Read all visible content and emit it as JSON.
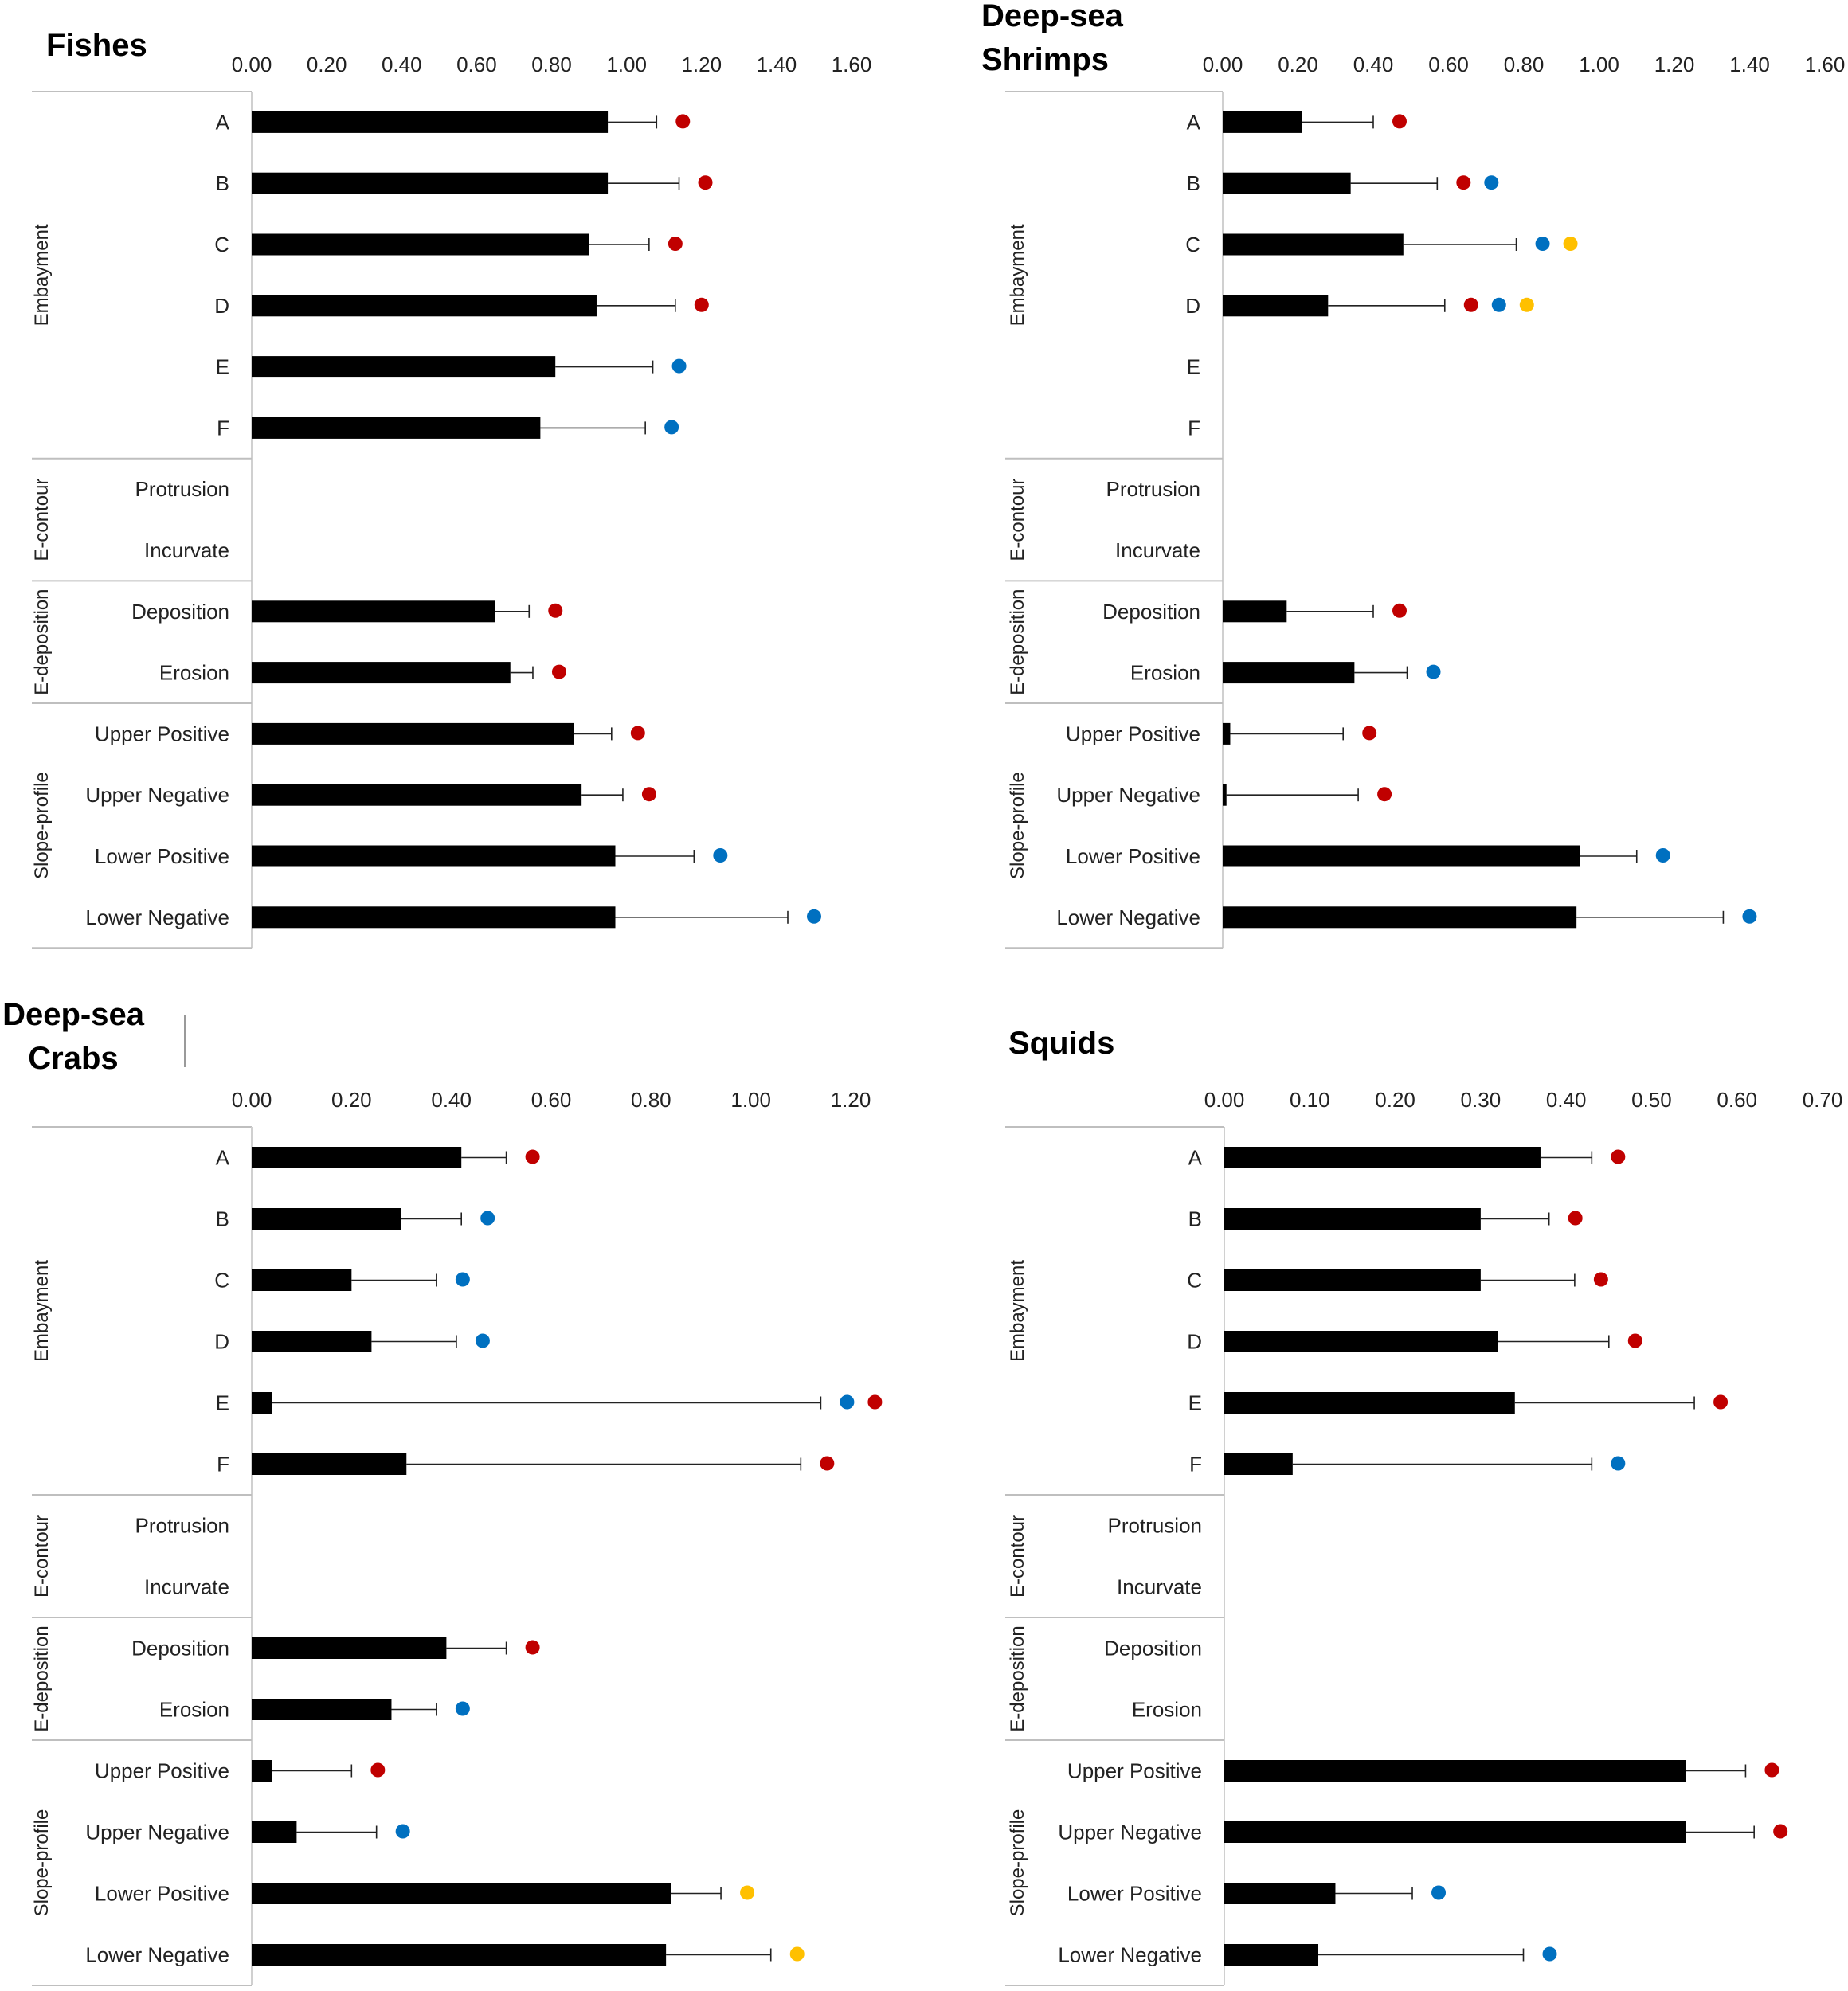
{
  "colors": {
    "red": "#C00000",
    "blue": "#0070C0",
    "yellow": "#FFC000",
    "bar": "#000000"
  },
  "groups": [
    {
      "label": "Embayment",
      "categories": [
        "A",
        "B",
        "C",
        "D",
        "E",
        "F"
      ]
    },
    {
      "label": "E-contour",
      "categories": [
        "Protrusion",
        "Incurvate"
      ]
    },
    {
      "label": "E-deposition",
      "categories": [
        "Deposition",
        "Erosion"
      ]
    },
    {
      "label": "Slope-profile",
      "categories": [
        "Upper Positive",
        "Upper Negative",
        "Lower Positive",
        "Lower Negative"
      ]
    }
  ],
  "chart_data": [
    {
      "type": "bar",
      "orientation": "horizontal",
      "title": [
        "Fishes"
      ],
      "xlim": [
        0,
        1.6
      ],
      "ticks": [
        "0.00",
        "0.20",
        "0.40",
        "0.60",
        "0.80",
        "1.00",
        "1.20",
        "1.40",
        "1.60"
      ],
      "values": [
        0.95,
        0.95,
        0.9,
        0.92,
        0.81,
        0.77,
        null,
        null,
        0.65,
        0.69,
        0.86,
        0.88,
        0.97,
        0.97
      ],
      "errors": [
        0.13,
        0.19,
        0.16,
        0.21,
        0.26,
        0.28,
        null,
        null,
        0.09,
        0.06,
        0.1,
        0.11,
        0.21,
        0.46
      ],
      "markers": [
        [
          "red"
        ],
        [
          "red"
        ],
        [
          "red"
        ],
        [
          "red"
        ],
        [
          "blue"
        ],
        [
          "blue"
        ],
        [],
        [],
        [
          "red"
        ],
        [
          "red"
        ],
        [
          "red"
        ],
        [
          "red"
        ],
        [
          "blue"
        ],
        [
          "blue"
        ]
      ]
    },
    {
      "type": "bar",
      "orientation": "horizontal",
      "title": [
        "Deep-sea",
        "Shrimps"
      ],
      "xlim": [
        0,
        1.6
      ],
      "ticks": [
        "0.00",
        "0.20",
        "0.40",
        "0.60",
        "0.80",
        "1.00",
        "1.20",
        "1.40",
        "1.60"
      ],
      "values": [
        0.21,
        0.34,
        0.48,
        0.28,
        null,
        null,
        null,
        null,
        0.17,
        0.35,
        0.02,
        0.01,
        0.95,
        0.94
      ],
      "errors": [
        0.19,
        0.23,
        0.3,
        0.31,
        null,
        null,
        null,
        null,
        0.23,
        0.14,
        0.3,
        0.35,
        0.15,
        0.39
      ],
      "markers": [
        [
          "red"
        ],
        [
          "red",
          "blue"
        ],
        [
          "blue",
          "yellow"
        ],
        [
          "red",
          "blue",
          "yellow"
        ],
        [],
        [],
        [],
        [],
        [
          "red"
        ],
        [
          "blue"
        ],
        [
          "red"
        ],
        [
          "red"
        ],
        [
          "blue"
        ],
        [
          "blue"
        ]
      ]
    },
    {
      "type": "bar",
      "orientation": "horizontal",
      "title": [
        "Deep-sea",
        "Crabs"
      ],
      "xlim": [
        0,
        1.2
      ],
      "ticks": [
        "0.00",
        "0.20",
        "0.40",
        "0.60",
        "0.80",
        "1.00",
        "1.20"
      ],
      "values": [
        0.42,
        0.3,
        0.2,
        0.24,
        0.04,
        0.31,
        null,
        null,
        0.39,
        0.28,
        0.04,
        0.09,
        0.84,
        0.83
      ],
      "errors": [
        0.09,
        0.12,
        0.17,
        0.17,
        1.1,
        0.79,
        null,
        null,
        0.12,
        0.09,
        0.16,
        0.16,
        0.1,
        0.21
      ],
      "markers": [
        [
          "red"
        ],
        [
          "blue"
        ],
        [
          "blue"
        ],
        [
          "blue"
        ],
        [
          "blue",
          "red"
        ],
        [
          "red"
        ],
        [],
        [],
        [
          "red"
        ],
        [
          "blue"
        ],
        [
          "red"
        ],
        [
          "blue"
        ],
        [
          "yellow"
        ],
        [
          "yellow"
        ]
      ]
    },
    {
      "type": "bar",
      "orientation": "horizontal",
      "title": [
        "Squids"
      ],
      "xlim": [
        0,
        0.7
      ],
      "ticks": [
        "0.00",
        "0.10",
        "0.20",
        "0.30",
        "0.40",
        "0.50",
        "0.60",
        "0.70"
      ],
      "values": [
        0.37,
        0.3,
        0.3,
        0.32,
        0.34,
        0.08,
        null,
        null,
        null,
        null,
        0.54,
        0.54,
        0.13,
        0.11
      ],
      "errors": [
        0.06,
        0.08,
        0.11,
        0.13,
        0.21,
        0.35,
        null,
        null,
        null,
        null,
        0.07,
        0.08,
        0.09,
        0.24
      ],
      "markers": [
        [
          "red"
        ],
        [
          "red"
        ],
        [
          "red"
        ],
        [
          "red"
        ],
        [
          "red"
        ],
        [
          "blue"
        ],
        [],
        [],
        [],
        [],
        [
          "red"
        ],
        [
          "red"
        ],
        [
          "blue"
        ],
        [
          "blue"
        ]
      ]
    }
  ]
}
